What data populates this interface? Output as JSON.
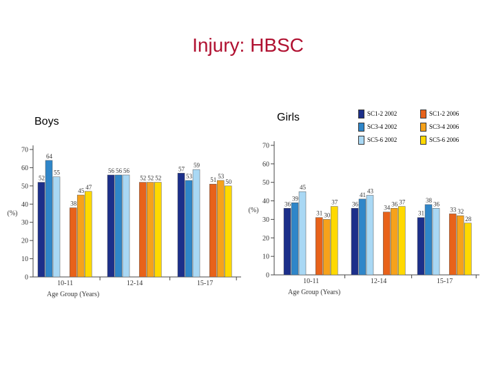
{
  "slide": {
    "title": "Injury: HBSC",
    "boys_label": "Boys",
    "girls_label": "Girls"
  },
  "colors": {
    "title": "#b01030",
    "SC1-2 2002": "#1c2f8a",
    "SC3-4 2002": "#2f86c9",
    "SC5-6 2002": "#a9d8f4",
    "SC1-2 2006": "#e8621a",
    "SC3-4 2006": "#f6a21b",
    "SC5-6 2006": "#ffd900"
  },
  "legend": [
    {
      "label": "SC1-2 2002",
      "color": "#1c2f8a"
    },
    {
      "label": "SC3-4 2002",
      "color": "#2f86c9"
    },
    {
      "label": "SC5-6 2002",
      "color": "#a9d8f4"
    },
    {
      "label": "SC1-2 2006",
      "color": "#e8621a"
    },
    {
      "label": "SC3-4 2006",
      "color": "#f6a21b"
    },
    {
      "label": "SC5-6 2006",
      "color": "#ffd900"
    }
  ],
  "chart_data": [
    {
      "type": "bar",
      "panel": "Boys",
      "categories": [
        "10-11",
        "12-14",
        "15-17"
      ],
      "xlabel": "Age Group (Years)",
      "ylabel": "(%)",
      "ylim": [
        0,
        70
      ],
      "yticks": [
        0,
        10,
        20,
        30,
        40,
        50,
        60,
        70
      ],
      "series": [
        {
          "name": "SC1-2 2002",
          "values": [
            52,
            56,
            57
          ]
        },
        {
          "name": "SC3-4 2002",
          "values": [
            64,
            56,
            53
          ]
        },
        {
          "name": "SC5-6 2002",
          "values": [
            55,
            56,
            59
          ]
        },
        {
          "name": "SC1-2 2006",
          "values": [
            38,
            52,
            51
          ]
        },
        {
          "name": "SC3-4 2006",
          "values": [
            45,
            52,
            53
          ]
        },
        {
          "name": "SC5-6 2006",
          "values": [
            47,
            52,
            50
          ]
        }
      ]
    },
    {
      "type": "bar",
      "panel": "Girls",
      "categories": [
        "10-11",
        "12-14",
        "15-17"
      ],
      "xlabel": "Age Group (Years)",
      "ylabel": "(%)",
      "ylim": [
        0,
        70
      ],
      "yticks": [
        0,
        10,
        20,
        30,
        40,
        50,
        60,
        70
      ],
      "series": [
        {
          "name": "SC1-2 2002",
          "values": [
            36,
            36,
            31
          ]
        },
        {
          "name": "SC3-4 2002",
          "values": [
            39,
            41,
            38
          ]
        },
        {
          "name": "SC5-6 2002",
          "values": [
            45,
            43,
            36
          ]
        },
        {
          "name": "SC1-2 2006",
          "values": [
            31,
            34,
            33
          ]
        },
        {
          "name": "SC3-4 2006",
          "values": [
            30,
            36,
            32
          ]
        },
        {
          "name": "SC5-6 2006",
          "values": [
            37,
            37,
            28
          ]
        }
      ]
    }
  ]
}
